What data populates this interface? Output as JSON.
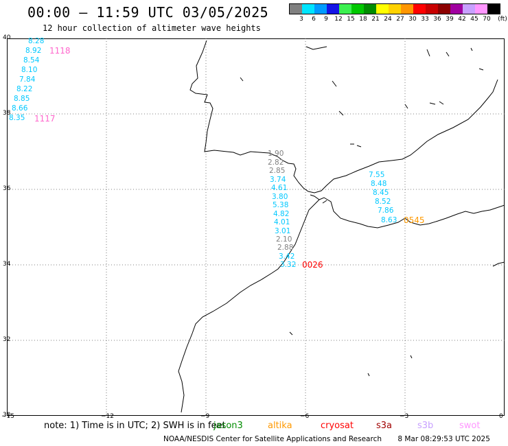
{
  "header": {
    "title": "00:00 – 11:59 UTC 03/05/2025",
    "subtitle": "12 hour collection of altimeter wave heights"
  },
  "legend": {
    "unit": "(ft)",
    "swatches": [
      {
        "color": "#808080",
        "label": "3"
      },
      {
        "color": "#00e5ff",
        "label": "6"
      },
      {
        "color": "#009bff",
        "label": "9"
      },
      {
        "color": "#1414e6",
        "label": "12"
      },
      {
        "color": "#3cf050",
        "label": "15"
      },
      {
        "color": "#00c800",
        "label": "18"
      },
      {
        "color": "#008c00",
        "label": "21"
      },
      {
        "color": "#ffff00",
        "label": "24"
      },
      {
        "color": "#ffd200",
        "label": "27"
      },
      {
        "color": "#ff9600",
        "label": "30"
      },
      {
        "color": "#ff0000",
        "label": "33"
      },
      {
        "color": "#c80000",
        "label": "36"
      },
      {
        "color": "#8c0000",
        "label": "39"
      },
      {
        "color": "#a000a0",
        "label": "42"
      },
      {
        "color": "#c8a0ff",
        "label": "45"
      },
      {
        "color": "#ff96ff",
        "label": "70"
      },
      {
        "color": "#000000",
        "label": ""
      }
    ]
  },
  "map": {
    "lon_range": [
      -15,
      0
    ],
    "lat_range": [
      30,
      40
    ],
    "lat_ticks": [
      "40",
      "38",
      "36",
      "34",
      "32",
      "30"
    ],
    "lon_ticks": [
      "−15",
      "−12",
      "−9",
      "−6",
      "−3",
      "0"
    ],
    "grid": true
  },
  "observations": {
    "track_west": [
      {
        "v": "8.28",
        "c": "#00c8ff"
      },
      {
        "v": "8.92",
        "c": "#00c8ff"
      },
      {
        "v": "8.54",
        "c": "#00c8ff"
      },
      {
        "v": "8.10",
        "c": "#00c8ff"
      },
      {
        "v": "7.84",
        "c": "#00c8ff"
      },
      {
        "v": "8.22",
        "c": "#00c8ff"
      },
      {
        "v": "8.85",
        "c": "#00c8ff"
      },
      {
        "v": "8.66",
        "c": "#00c8ff"
      },
      {
        "v": "8.35",
        "c": "#00c8ff"
      }
    ],
    "track_gibraltar": [
      {
        "v": "1.90",
        "c": "#808080"
      },
      {
        "v": "2.82",
        "c": "#808080"
      },
      {
        "v": "2.85",
        "c": "#808080"
      },
      {
        "v": "3.74",
        "c": "#00c8ff"
      },
      {
        "v": "4.61",
        "c": "#00c8ff"
      },
      {
        "v": "3.80",
        "c": "#00c8ff"
      },
      {
        "v": "5.38",
        "c": "#00c8ff"
      },
      {
        "v": "4.82",
        "c": "#00c8ff"
      },
      {
        "v": "4.01",
        "c": "#00c8ff"
      },
      {
        "v": "3.01",
        "c": "#00c8ff"
      },
      {
        "v": "2.10",
        "c": "#808080"
      },
      {
        "v": "2.88",
        "c": "#808080"
      },
      {
        "v": "3.42",
        "c": "#00c8ff"
      },
      {
        "v": "3.32",
        "c": "#00c8ff"
      }
    ],
    "track_alboran": [
      {
        "v": "7.55",
        "c": "#00c8ff"
      },
      {
        "v": "8.48",
        "c": "#00c8ff"
      },
      {
        "v": "8.45",
        "c": "#00c8ff"
      },
      {
        "v": "8.52",
        "c": "#00c8ff"
      },
      {
        "v": "7.86",
        "c": "#00c8ff"
      },
      {
        "v": "8.63",
        "c": "#00c8ff"
      }
    ],
    "time_tags": [
      {
        "v": "1118",
        "c": "#ff66cc"
      },
      {
        "v": "1117",
        "c": "#ff66cc"
      },
      {
        "v": "0026",
        "c": "#ff0000"
      },
      {
        "v": "0545",
        "c": "#ff9900"
      }
    ]
  },
  "footer": {
    "note": "note:  1) Time is in UTC;  2) SWH is in feet",
    "credit": "NOAA/NESDIS Center for Satellite Applications and Research",
    "timestamp": "8 Mar 08:29:53 UTC 2025",
    "satellites": [
      {
        "name": "jason3",
        "color": "#008c00"
      },
      {
        "name": "altika",
        "color": "#ff9900"
      },
      {
        "name": "cryosat",
        "color": "#ff0000"
      },
      {
        "name": "s3a",
        "color": "#a00000"
      },
      {
        "name": "s3b",
        "color": "#c8a0ff"
      },
      {
        "name": "swot",
        "color": "#ff96ff"
      }
    ]
  }
}
